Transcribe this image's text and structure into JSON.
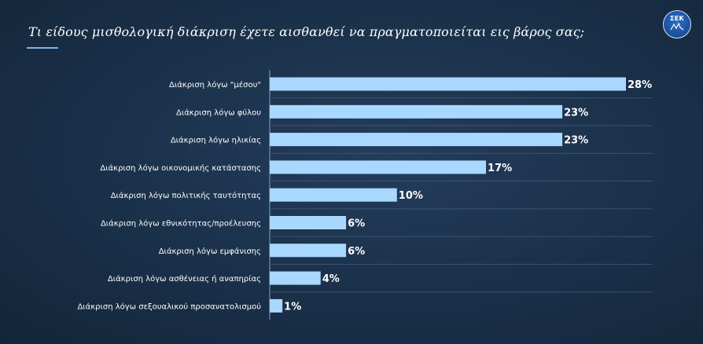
{
  "header": {
    "title": "Τι είδους μισθολογική διάκριση έχετε αισθανθεί να πραγματοποιείται εις βάρος σας;",
    "logo_text": "ΣΕΚ"
  },
  "colors": {
    "bar": "#a9d8ff",
    "divider": "#3b536e",
    "axis": "#8aa0b8",
    "text": "#ffffff"
  },
  "chart_data": {
    "type": "bar",
    "orientation": "horizontal",
    "title": "Τι είδους μισθολογική διάκριση έχετε αισθανθεί να πραγματοποιείται εις βάρος σας;",
    "categories": [
      "Διάκριση λόγω \"μέσου\"",
      "Διάκριση λόγω φύλου",
      "Διάκριση λόγω ηλικίας",
      "Διάκριση λόγω οικονομικής κατάστασης",
      "Διάκριση λόγω πολιτικής ταυτότητας",
      "Διάκριση λόγω εθνικότητας/προέλευσης",
      "Διάκριση λόγω εμφάνισης",
      "Διάκριση λόγω ασθένειας ή αναπηρίας",
      "Διάκριση λόγω σεξουαλικού προσανατολισμού"
    ],
    "values": [
      28,
      23,
      23,
      17,
      10,
      6,
      6,
      4,
      1
    ],
    "value_labels": [
      "28%",
      "23%",
      "23%",
      "17%",
      "10%",
      "6%",
      "6%",
      "4%",
      "1%"
    ],
    "unit": "%",
    "xlim": [
      0,
      28
    ],
    "grid": false,
    "legend": "none"
  }
}
